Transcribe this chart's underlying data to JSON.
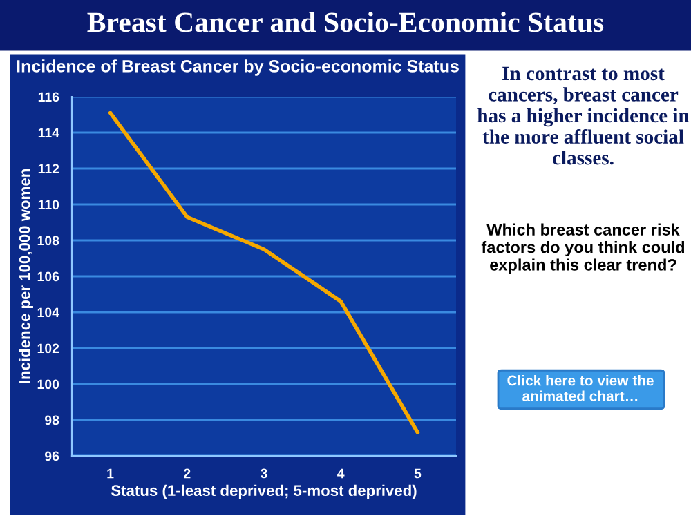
{
  "chart_data": {
    "type": "line",
    "title": "Breast Cancer and Socio-Economic Status",
    "subtitle": "Incidence of Breast Cancer by Socio-economic Status",
    "xlabel": "Status (1-least deprived; 5-most deprived)",
    "ylabel": "Incidence per 100,000 women",
    "categories": [
      "1",
      "2",
      "3",
      "4",
      "5"
    ],
    "series": [
      {
        "color": "#f5a800",
        "values": [
          115.1,
          109.3,
          107.5,
          104.6,
          97.3
        ]
      }
    ],
    "ylim": [
      96,
      116
    ],
    "yticks": [
      96,
      98,
      100,
      102,
      104,
      106,
      108,
      110,
      112,
      114,
      116
    ],
    "grid": "y",
    "marker": "none",
    "line_style": "solid",
    "annotations": [
      "In contrast to most cancers, breast cancer has a higher incidence in the more affluent social classes.",
      "Which breast cancer risk factors do you think could explain this clear trend?",
      "Click here to view the animated chart…"
    ]
  }
}
